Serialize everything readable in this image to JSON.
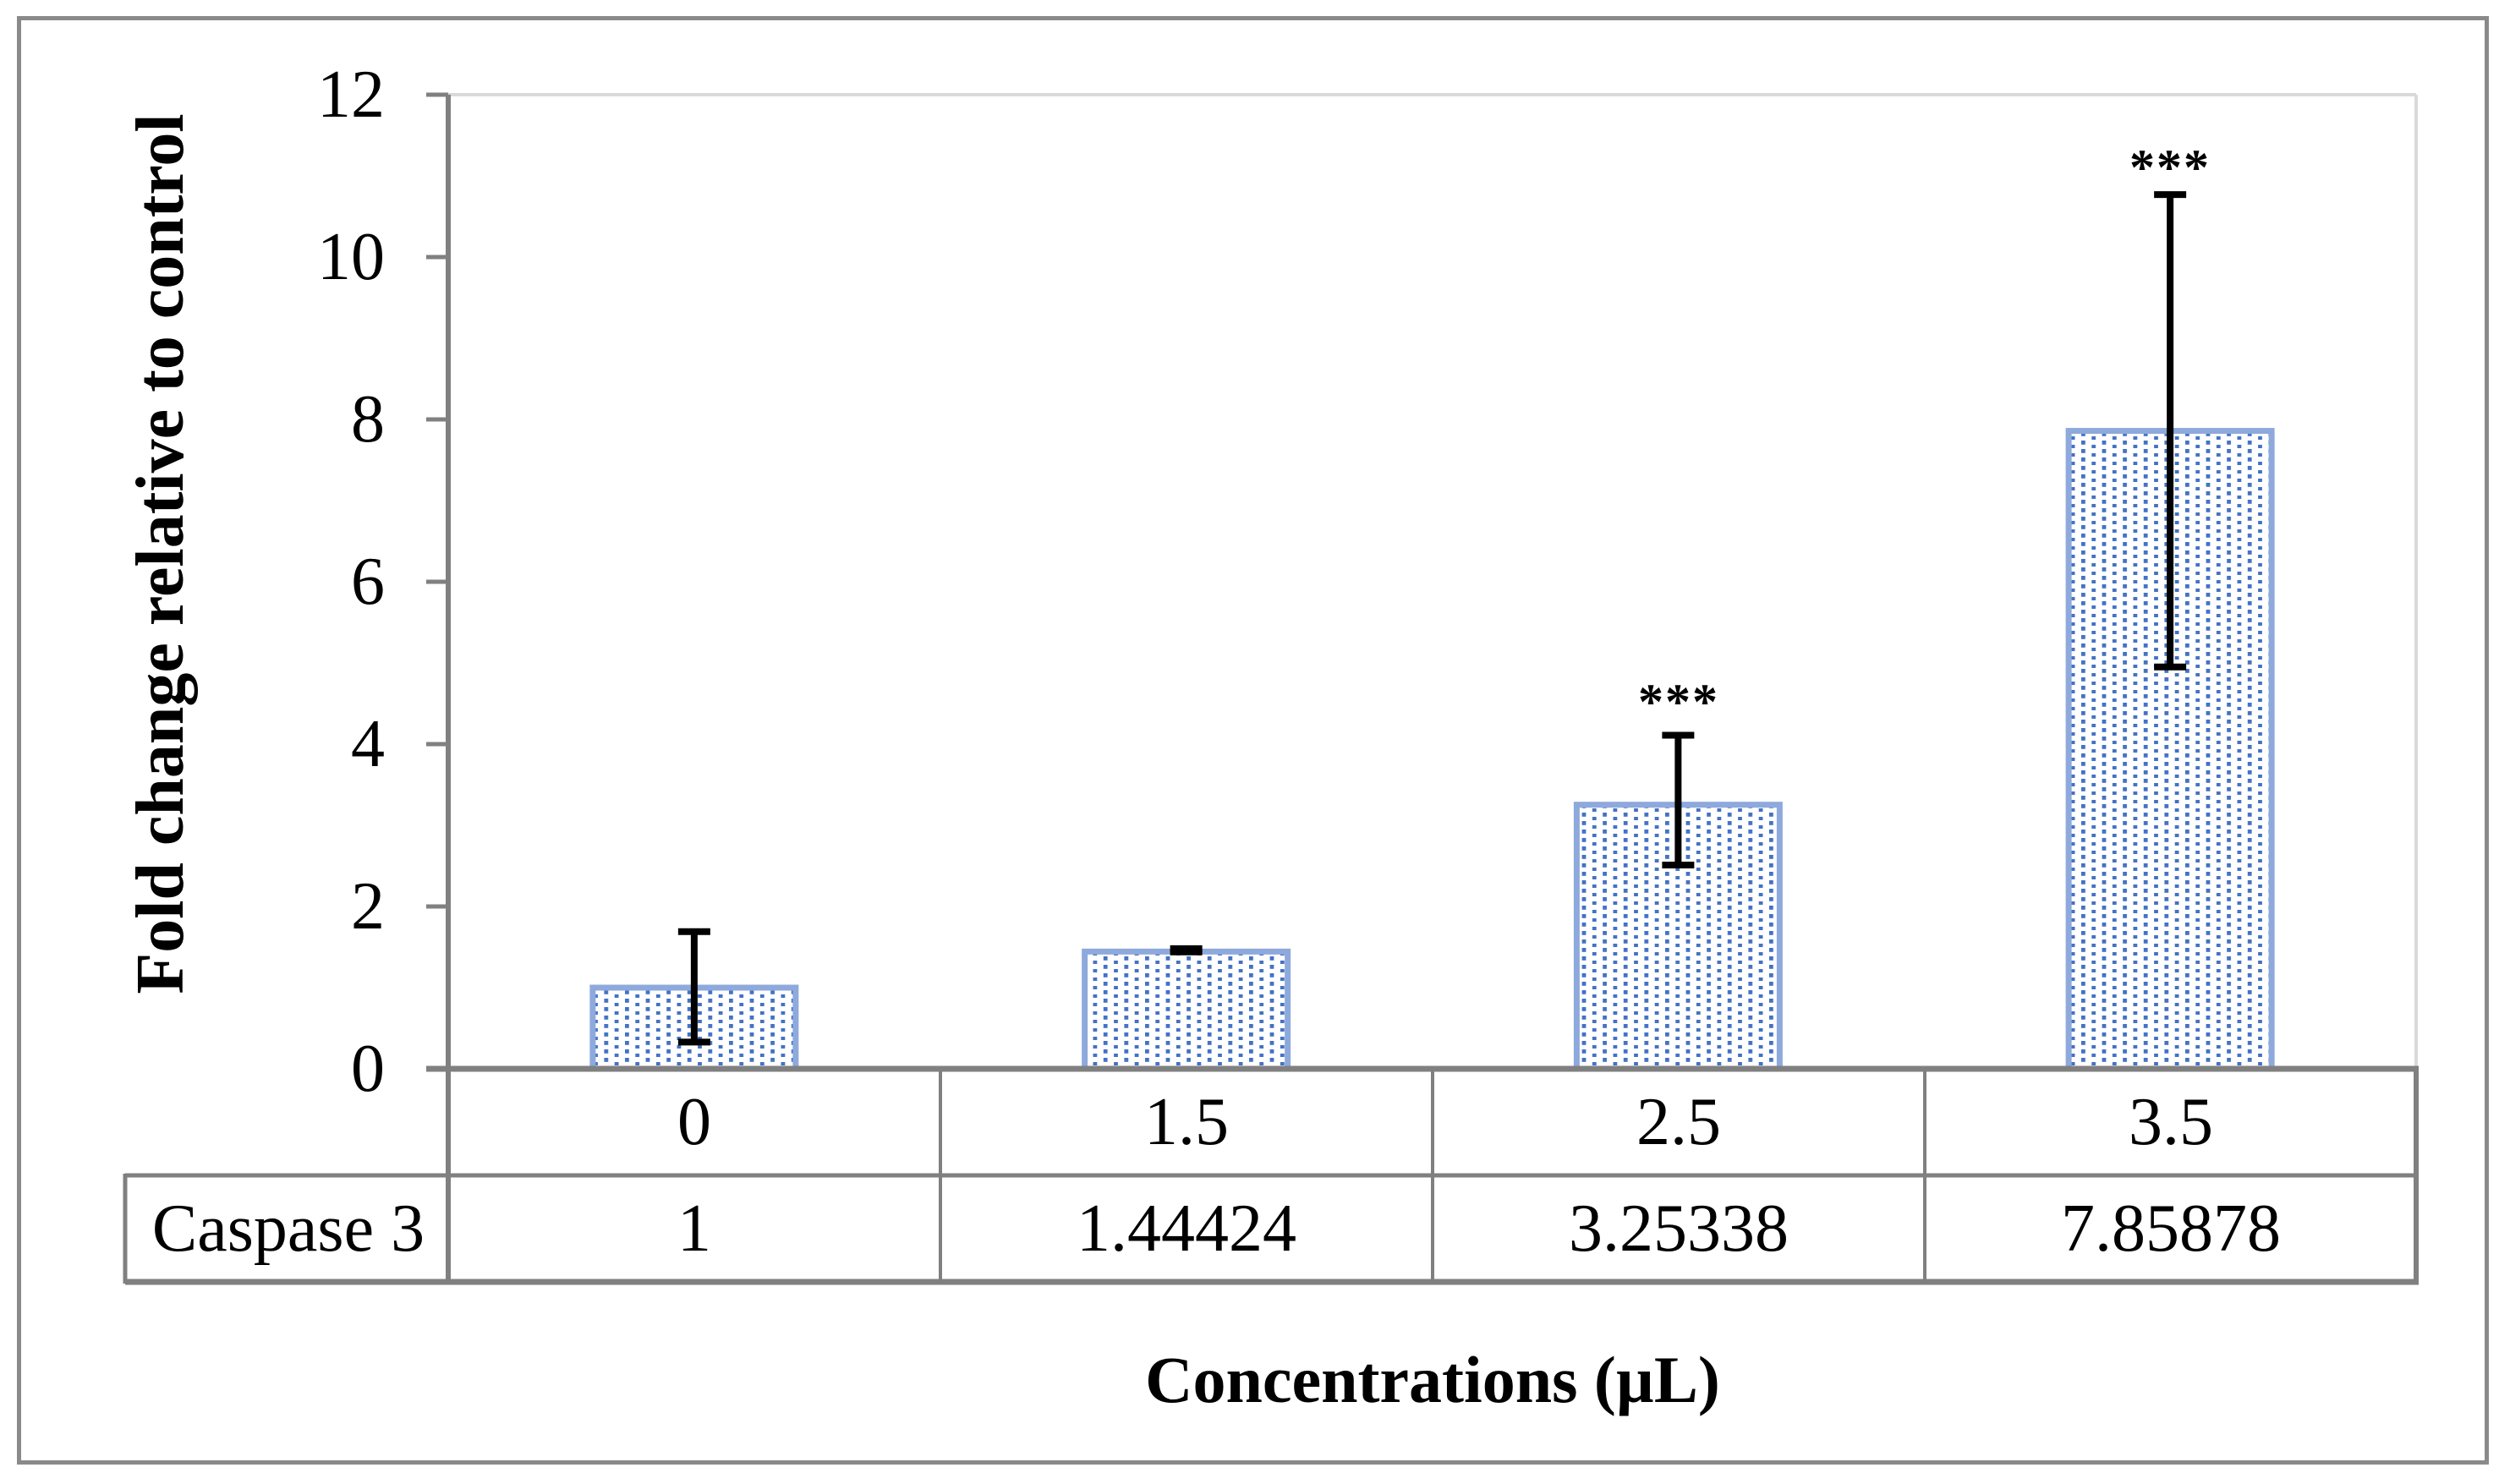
{
  "chart_data": {
    "type": "bar",
    "title": "",
    "ylabel": "Fold change relative to control",
    "xlabel": "Concentrations (µL)",
    "series_label": "Caspase 3",
    "categories": [
      "0",
      "1.5",
      "2.5",
      "3.5"
    ],
    "values": [
      1,
      1.44424,
      3.25338,
      7.85878
    ],
    "value_labels": [
      "1",
      "1.44424",
      "3.25338",
      "7.85878"
    ],
    "yticks": [
      "0",
      "2",
      "4",
      "6",
      "8",
      "10",
      "12"
    ],
    "ytick_values": [
      0,
      2,
      4,
      6,
      8,
      10,
      12
    ],
    "ylim": [
      0,
      12
    ],
    "grid": false,
    "legend_position": "none",
    "data_table_shown": true,
    "error_bars": [
      {
        "upper": 1.69,
        "lower": 0.33
      },
      {
        "upper": 1.48,
        "lower": 1.44
      },
      {
        "upper": 4.11,
        "lower": 2.51
      },
      {
        "upper": 10.77,
        "lower": 4.95
      }
    ],
    "significance": [
      "",
      "",
      "***",
      "***"
    ],
    "colors": {
      "bar_dot_fill": "#4472C4",
      "bar_fill_background": "#FFFFFF",
      "bar_border": "#8EA9DC",
      "error_bar": "#000000",
      "axis_line": "#808080",
      "plot_border_light": "#D9D9D9",
      "table_border": "#808080",
      "figure_border": "#8A8A8A",
      "text": "#000000"
    }
  }
}
